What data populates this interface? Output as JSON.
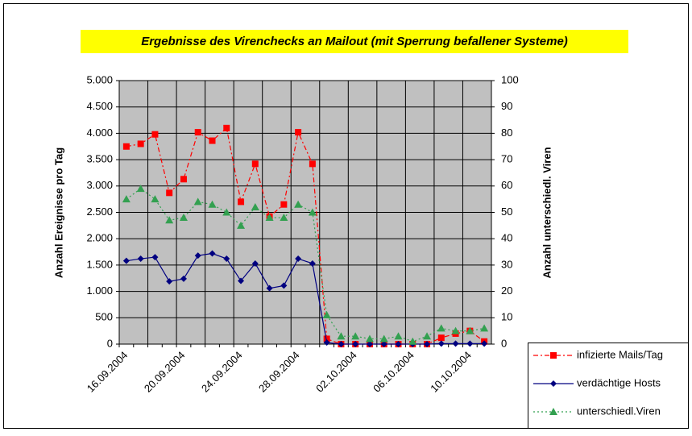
{
  "chart_data": {
    "type": "line",
    "title": "Ergebnisse des Virenchecks an Mailout (mit Sperrung befallener Systeme)",
    "y_label": "Anzahl Ereignisse pro Tag",
    "y2_label": "Anzahl unterschiedl. Viren",
    "categories": [
      "16.09.2004",
      null,
      null,
      null,
      "20.09.2004",
      null,
      null,
      null,
      "24.09.2004",
      null,
      null,
      null,
      "28.09.2004",
      null,
      null,
      null,
      "02.10.2004",
      null,
      null,
      null,
      "06.10.2004",
      null,
      null,
      null,
      "10.10.2004",
      null
    ],
    "ylim": [
      0,
      5000
    ],
    "yticks": [
      0,
      {
        "value": 500,
        "label": "500"
      },
      {
        "value": 1000,
        "label": "1.000"
      },
      {
        "value": 1500,
        "label": "1.500"
      },
      {
        "value": 2000,
        "label": "2.000"
      },
      {
        "value": 2500,
        "label": "2.500"
      },
      {
        "value": 3000,
        "label": "3.000"
      },
      {
        "value": 3500,
        "label": "3.500"
      },
      {
        "value": 4000,
        "label": "4.000"
      },
      {
        "value": 4500,
        "label": "4.500"
      },
      {
        "value": 5000,
        "label": "5.000"
      }
    ],
    "y2lim": [
      0,
      100
    ],
    "y2ticks": [
      0,
      10,
      20,
      30,
      40,
      50,
      60,
      70,
      80,
      90,
      100
    ],
    "grid": true,
    "legend": "right",
    "series": [
      {
        "name": "infizierte Mails/Tag",
        "color": "#ff0000",
        "values": [
          3750,
          3800,
          3980,
          2870,
          3130,
          4020,
          3860,
          4100,
          2700,
          3420,
          2420,
          2650,
          4020,
          3420,
          100,
          0,
          0,
          0,
          0,
          0,
          0,
          0,
          120,
          200,
          250,
          50
        ]
      },
      {
        "name": "verdächtige Hosts",
        "color": "#000080",
        "values": [
          1580,
          1620,
          1650,
          1190,
          1240,
          1680,
          1720,
          1620,
          1200,
          1530,
          1060,
          1110,
          1620,
          1530,
          30,
          0,
          0,
          0,
          0,
          0,
          0,
          0,
          10,
          10,
          10,
          10
        ]
      },
      {
        "name": "unterschiedl.Viren",
        "color": "#33a050",
        "axis": "y2",
        "values": [
          55,
          59,
          55,
          47,
          48,
          54,
          53,
          50,
          45,
          52,
          48,
          48,
          53,
          50,
          11,
          3,
          3,
          2,
          2,
          3,
          1,
          3,
          6,
          5,
          5,
          6
        ]
      }
    ]
  }
}
